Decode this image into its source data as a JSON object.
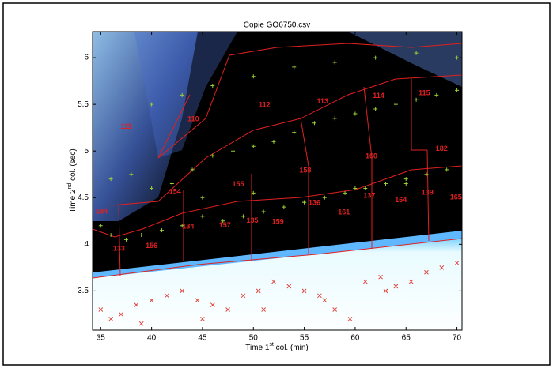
{
  "chart_data": {
    "type": "scatter",
    "title": "Copie GO6750.csv",
    "xlabel": [
      "Time 1",
      "st",
      " col. (min)"
    ],
    "ylabel": [
      "Time 2",
      "nd",
      " col. (sec)"
    ],
    "xlim": [
      34.2,
      70.5
    ],
    "ylim": [
      3.08,
      6.28
    ],
    "xticks": [
      35,
      40,
      45,
      50,
      55,
      60,
      65,
      70
    ],
    "yticks": [
      3.5,
      4,
      4.5,
      5,
      5.5,
      6
    ],
    "annotations": [
      {
        "text": "110",
        "x": 44.1,
        "y": 5.34
      },
      {
        "text": "111",
        "x": 37.5,
        "y": 5.26
      },
      {
        "text": "112",
        "x": 51.1,
        "y": 5.49
      },
      {
        "text": "113",
        "x": 56.8,
        "y": 5.53
      },
      {
        "text": "114",
        "x": 62.3,
        "y": 5.59
      },
      {
        "text": "115",
        "x": 66.8,
        "y": 5.62
      },
      {
        "text": "182",
        "x": 68.5,
        "y": 5.02
      },
      {
        "text": "160",
        "x": 61.6,
        "y": 4.94
      },
      {
        "text": "158",
        "x": 55.1,
        "y": 4.79
      },
      {
        "text": "155",
        "x": 48.5,
        "y": 4.64
      },
      {
        "text": "154",
        "x": 42.3,
        "y": 4.56
      },
      {
        "text": "184",
        "x": 35.1,
        "y": 4.35
      },
      {
        "text": "133",
        "x": 36.8,
        "y": 3.95
      },
      {
        "text": "156",
        "x": 40.0,
        "y": 3.98
      },
      {
        "text": "134",
        "x": 43.6,
        "y": 4.19
      },
      {
        "text": "157",
        "x": 47.2,
        "y": 4.2
      },
      {
        "text": "135",
        "x": 49.9,
        "y": 4.25
      },
      {
        "text": "159",
        "x": 52.4,
        "y": 4.24
      },
      {
        "text": "136",
        "x": 56.0,
        "y": 4.44
      },
      {
        "text": "161",
        "x": 58.9,
        "y": 4.34
      },
      {
        "text": "137",
        "x": 61.4,
        "y": 4.52
      },
      {
        "text": "164",
        "x": 64.5,
        "y": 4.47
      },
      {
        "text": "139",
        "x": 67.1,
        "y": 4.55
      },
      {
        "text": "165",
        "x": 69.9,
        "y": 4.5
      }
    ],
    "series": [
      {
        "marker": "+",
        "color": "#9acd32",
        "x": [
          35,
          36,
          37.5,
          39,
          41,
          43,
          45,
          47,
          49,
          51,
          53,
          55,
          57,
          59,
          61,
          63,
          65,
          67,
          69,
          36,
          38,
          40,
          42,
          44,
          46,
          48,
          50,
          52,
          54,
          56,
          58,
          60,
          62,
          64,
          66,
          68,
          70,
          40,
          43,
          46,
          50,
          54,
          58,
          62,
          66,
          70,
          45,
          50,
          55,
          60,
          65
        ],
        "y": [
          4.2,
          4.1,
          4.05,
          4.1,
          4.15,
          4.2,
          4.3,
          4.25,
          4.3,
          4.35,
          4.4,
          4.45,
          4.5,
          4.55,
          4.6,
          4.65,
          4.7,
          4.75,
          4.8,
          4.7,
          4.75,
          4.6,
          4.65,
          4.8,
          4.95,
          5.0,
          5.05,
          5.1,
          5.2,
          5.3,
          5.35,
          5.4,
          5.45,
          5.5,
          5.55,
          5.6,
          5.65,
          5.5,
          5.6,
          5.7,
          5.8,
          5.9,
          5.95,
          6.0,
          6.05,
          6.0,
          4.5,
          4.55,
          4.45,
          4.6,
          4.65
        ]
      },
      {
        "marker": "x",
        "color": "#e0453c",
        "x": [
          35,
          36,
          37,
          38.5,
          40,
          41.5,
          43,
          44.5,
          46,
          47.5,
          49,
          50.5,
          52,
          53.5,
          55,
          56.5,
          58,
          59.5,
          61,
          62.5,
          64,
          65.5,
          67,
          68.5,
          70,
          39,
          45,
          51,
          57,
          63
        ],
        "y": [
          3.3,
          3.2,
          3.25,
          3.35,
          3.4,
          3.45,
          3.5,
          3.4,
          3.35,
          3.3,
          3.45,
          3.5,
          3.6,
          3.55,
          3.5,
          3.45,
          3.3,
          3.2,
          3.6,
          3.65,
          3.55,
          3.6,
          3.7,
          3.75,
          3.8,
          3.15,
          3.2,
          3.3,
          3.4,
          3.5
        ]
      }
    ]
  }
}
